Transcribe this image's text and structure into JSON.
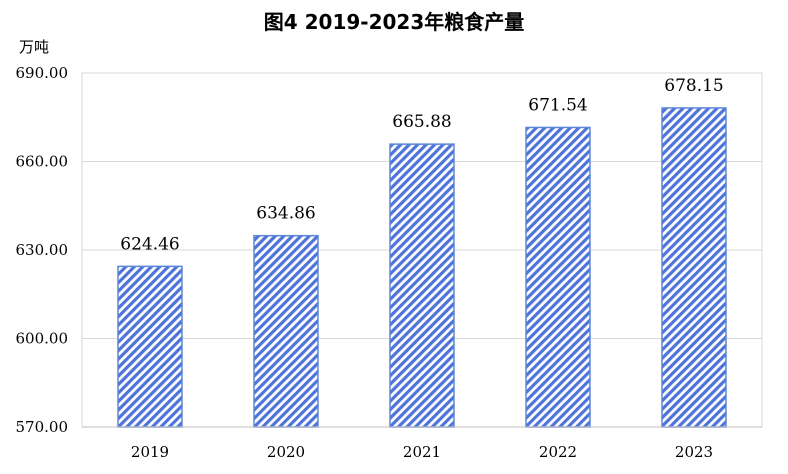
{
  "chart_data": {
    "type": "bar",
    "title": "图4  2019-2023年粮食产量",
    "ylabel": "万吨",
    "xlabel": "",
    "categories": [
      "2019",
      "2020",
      "2021",
      "2022",
      "2023"
    ],
    "values": [
      624.46,
      634.86,
      665.88,
      671.54,
      678.15
    ],
    "value_labels": [
      "624.46",
      "634.86",
      "665.88",
      "671.54",
      "678.15"
    ],
    "ylim": [
      570,
      690
    ],
    "yticks": [
      570,
      600,
      630,
      660,
      690
    ],
    "ytick_labels": [
      "570.00",
      "600.00",
      "630.00",
      "660.00",
      "690.00"
    ],
    "grid": true,
    "legend": "none",
    "colors": {
      "bar_fill": "#4f74d9",
      "bar_edge": "#5b86d8",
      "grid": "#d9d9d9",
      "axis": "#bfbfbf"
    }
  }
}
